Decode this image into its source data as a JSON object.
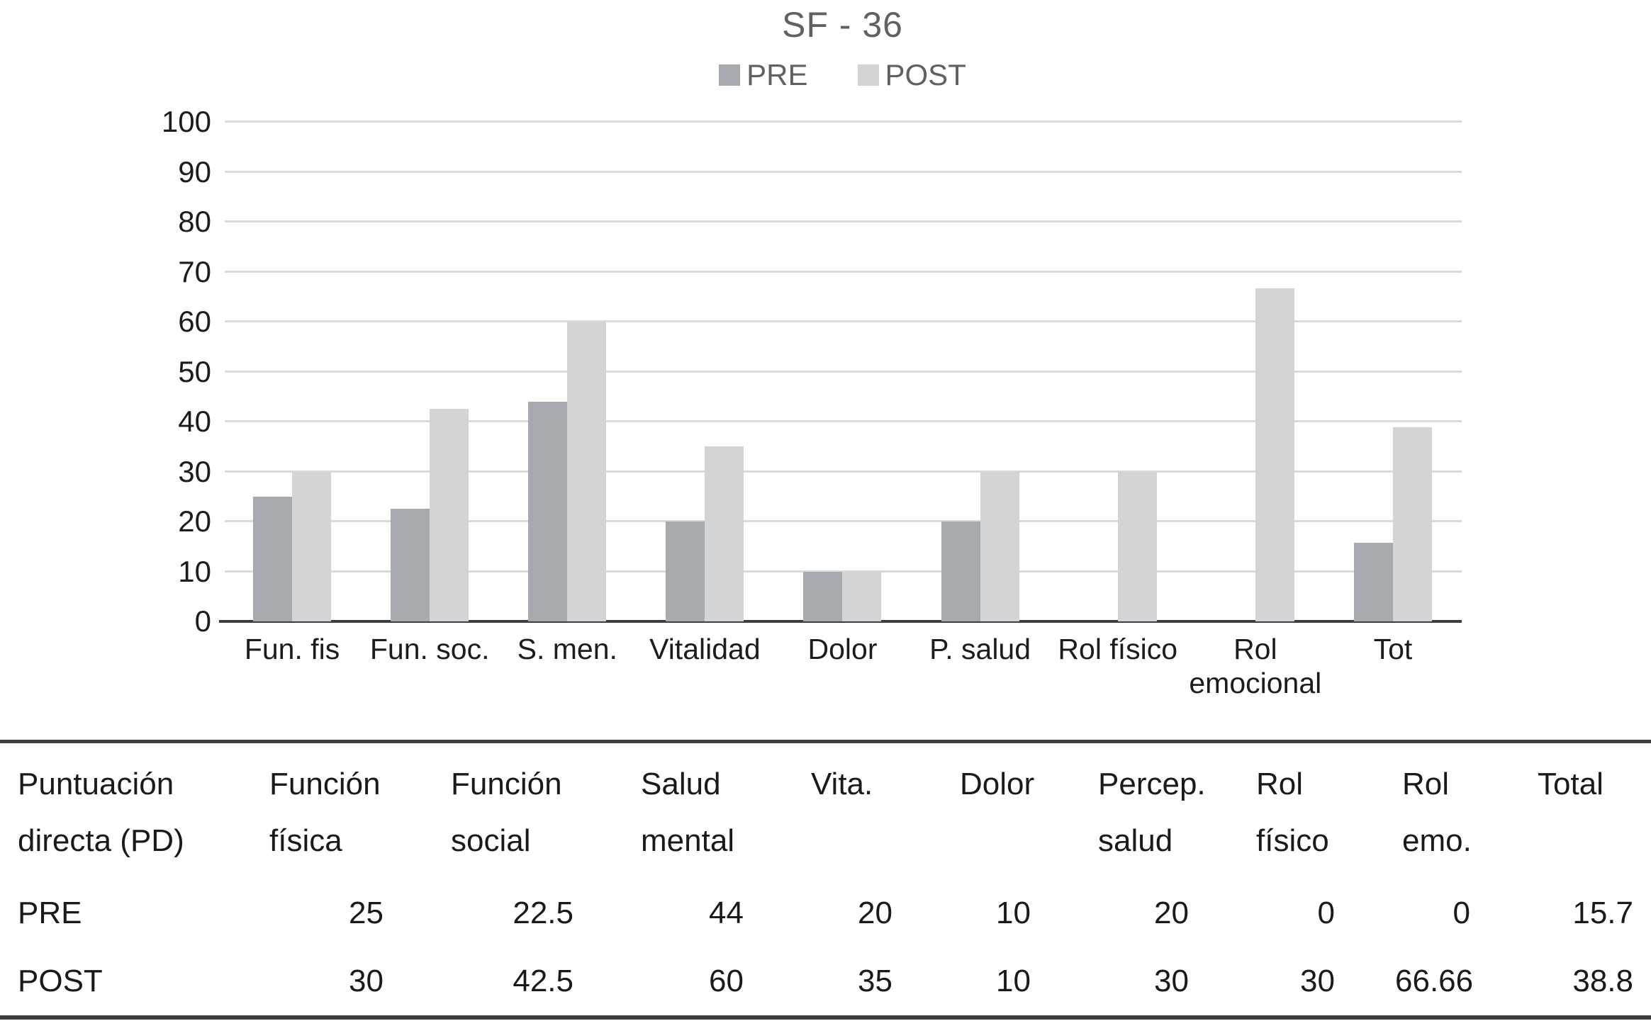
{
  "chart_data": {
    "type": "bar",
    "title": "SF - 36",
    "categories": [
      "Fun. fis",
      "Fun. soc.",
      "S. men.",
      "Vitalidad",
      "Dolor",
      "P. salud",
      "Rol físico",
      "Rol emocional",
      "Tot"
    ],
    "series": [
      {
        "name": "PRE",
        "color": "#a6aaae",
        "values": [
          25,
          22.5,
          44,
          20,
          10,
          20,
          0,
          0,
          15.7
        ]
      },
      {
        "name": "POST",
        "color": "#d2d4d6",
        "values": [
          30,
          42.5,
          60,
          35,
          10,
          30,
          30,
          66.66,
          38.8
        ]
      }
    ],
    "xlabel": "",
    "ylabel": "",
    "ylim": [
      0,
      100
    ],
    "ytick_step": 10,
    "grid": true,
    "legend_position": "top-center"
  },
  "colors": {
    "pre_bar": "#a6aaae",
    "post_bar": "#d2d4d6",
    "gridline": "#d9dadb",
    "axis": "#3c3e41",
    "muted_text": "#5f6164"
  },
  "table": {
    "row_header_lines": [
      "Puntuación",
      "directa (PD)"
    ],
    "column_lines": [
      [
        "Función",
        "física"
      ],
      [
        "Función",
        "social"
      ],
      [
        "Salud",
        "mental"
      ],
      [
        "Vita."
      ],
      [
        "Dolor"
      ],
      [
        "Percep.",
        "salud"
      ],
      [
        "Rol",
        "físico"
      ],
      [
        "Rol",
        "emo."
      ],
      [
        "Total"
      ]
    ],
    "rows": [
      {
        "label": "PRE",
        "values": [
          "25",
          "22.5",
          "44",
          "20",
          "10",
          "20",
          "0",
          "0",
          "15.7"
        ]
      },
      {
        "label": "POST",
        "values": [
          "30",
          "42.5",
          "60",
          "35",
          "10",
          "30",
          "30",
          "66.66",
          "38.8"
        ]
      }
    ]
  }
}
